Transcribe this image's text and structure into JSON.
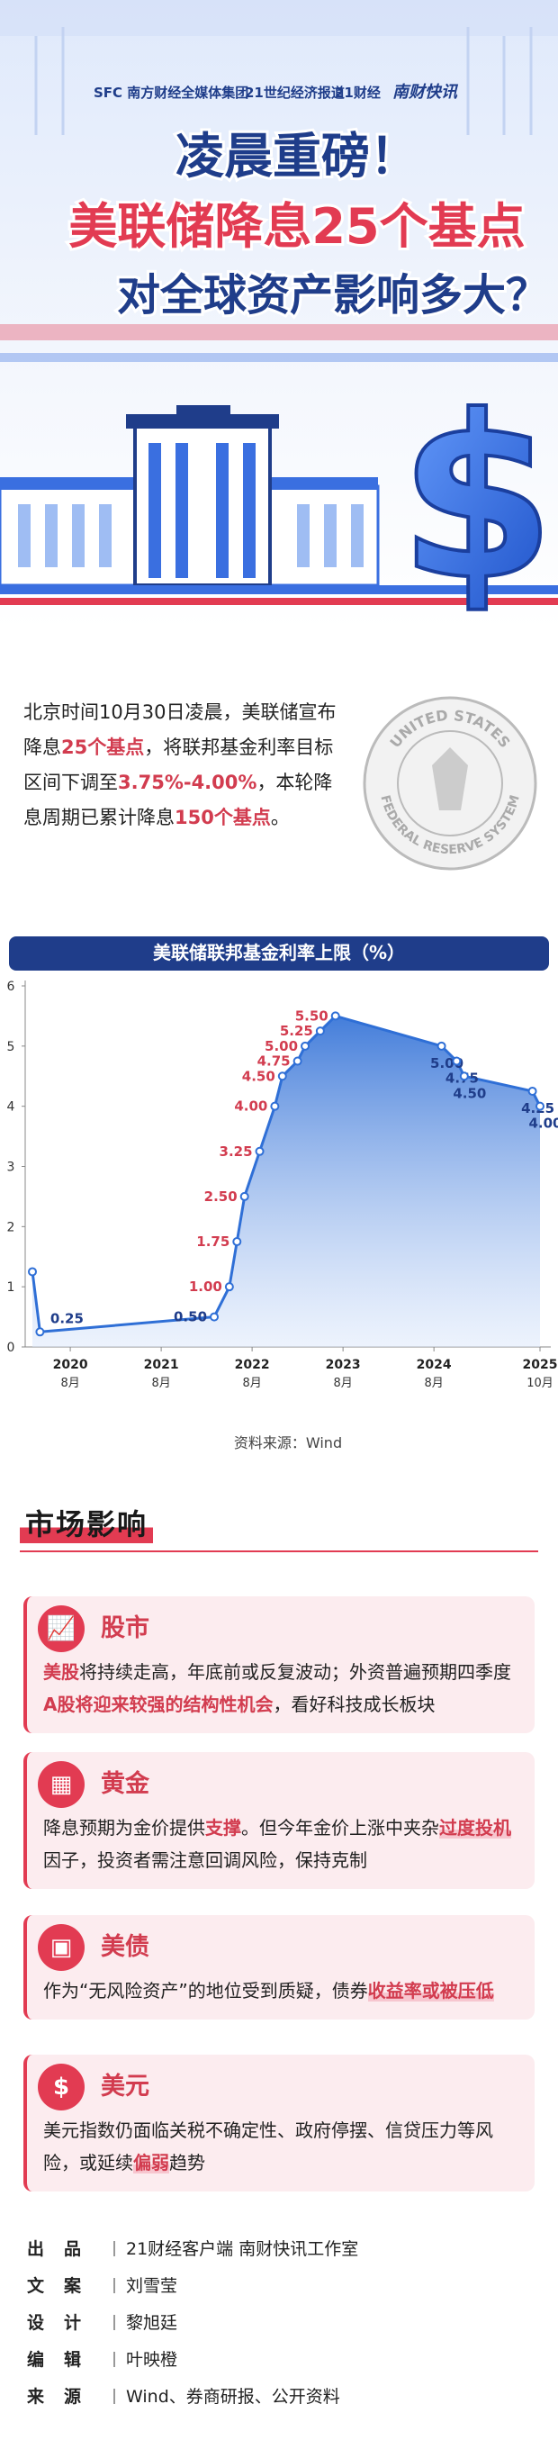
{
  "header": {
    "logos": [
      "SFC 南方财经全媒体集团",
      "21世纪经济报道",
      "21财经",
      "南财快讯"
    ],
    "headline": [
      "凌晨重磅！",
      "美联储降息25个基点",
      "对全球资产影响多大？"
    ]
  },
  "intro": {
    "segments": [
      {
        "text": "北京时间10月30日凌晨，美联储宣布降息",
        "style": "normal"
      },
      {
        "text": "25个基点",
        "style": "red"
      },
      {
        "text": "，将联邦基金利率目标区间下调至",
        "style": "normal"
      },
      {
        "text": "3.75%-4.00%",
        "style": "red"
      },
      {
        "text": "，本轮降息周期已累计降息",
        "style": "normal"
      },
      {
        "text": "150个基点",
        "style": "red"
      },
      {
        "text": "。",
        "style": "normal"
      }
    ],
    "seal_top": "UNITED STATES",
    "seal_bottom": "FEDERAL RESERVE SYSTEM"
  },
  "chart_data": {
    "type": "line",
    "title": "美联储联邦基金利率上限（%）",
    "source": "资料来源：Wind",
    "x": [
      "2020-03",
      "2020-04",
      "2022-03",
      "2022-05",
      "2022-06",
      "2022-07",
      "2022-09",
      "2022-11",
      "2022-12",
      "2023-02",
      "2023-03",
      "2023-05",
      "2023-07",
      "2024-09",
      "2024-11",
      "2024-12",
      "2025-09",
      "2025-10"
    ],
    "series": [
      {
        "name": "联邦基金利率上限",
        "color": "#2f6fd6",
        "values": [
          1.25,
          0.25,
          0.5,
          1.0,
          1.75,
          2.5,
          3.25,
          4.0,
          4.5,
          4.75,
          5.0,
          5.25,
          5.5,
          5.0,
          4.75,
          4.5,
          4.25,
          4.0
        ],
        "value_labels": [
          null,
          "0.25",
          "0.50",
          "1.00",
          "1.75",
          "2.50",
          "3.25",
          "4.00",
          "4.50",
          "4.75",
          "5.00",
          "5.25",
          "5.50",
          "5.00",
          "4.75",
          "4.50",
          "4.25",
          "4.00"
        ]
      }
    ],
    "label_color_up": "#d23c4f",
    "label_color_down": "#1f3d8a",
    "xlim": [
      "2020-03",
      "2025-10"
    ],
    "xticks": [
      {
        "value": "2020-08",
        "label": "2020",
        "sublabel": "8月"
      },
      {
        "value": "2021-08",
        "label": "2021",
        "sublabel": "8月"
      },
      {
        "value": "2022-08",
        "label": "2022",
        "sublabel": "8月"
      },
      {
        "value": "2023-08",
        "label": "2023",
        "sublabel": "8月"
      },
      {
        "value": "2024-08",
        "label": "2024",
        "sublabel": "8月"
      },
      {
        "value": "2025-10",
        "label": "2025",
        "sublabel": "10月"
      }
    ],
    "ylim": [
      0,
      6
    ],
    "yticks": [
      0,
      1,
      2,
      3,
      4,
      5,
      6
    ],
    "grid": false
  },
  "market": {
    "heading": "市场影响",
    "cards": [
      {
        "icon": "chart",
        "title": "股市",
        "segments": [
          {
            "text": "美股",
            "style": "red"
          },
          {
            "text": "将持续走高，年底前或反复波动；外资普遍预期四季度",
            "style": "normal"
          },
          {
            "text": "A股将迎来较强的结构性机会",
            "style": "red"
          },
          {
            "text": "，看好科技成长板块",
            "style": "normal"
          }
        ]
      },
      {
        "icon": "gold",
        "title": "黄金",
        "segments": [
          {
            "text": "降息预期为金价提供",
            "style": "normal"
          },
          {
            "text": "支撑",
            "style": "red"
          },
          {
            "text": "。但今年金价上涨中夹杂",
            "style": "normal"
          },
          {
            "text": "过度投机",
            "style": "mark"
          },
          {
            "text": "因子，投资者需注意回调风险，保持克制",
            "style": "normal"
          }
        ]
      },
      {
        "icon": "bond",
        "title": "美债",
        "segments": [
          {
            "text": "作为“无风险资产”的地位受到质疑，债券",
            "style": "normal"
          },
          {
            "text": "收益率或被压低",
            "style": "mark"
          }
        ]
      },
      {
        "icon": "dollar",
        "title": "美元",
        "segments": [
          {
            "text": "美元指数仍面临关税不确定性、政府停摆、信贷压力等风险，或延续",
            "style": "normal"
          },
          {
            "text": "偏弱",
            "style": "mark"
          },
          {
            "text": "趋势",
            "style": "normal"
          }
        ]
      }
    ]
  },
  "credits": [
    {
      "label": "出品",
      "value": "21财经客户端 南财快讯工作室"
    },
    {
      "label": "文案",
      "value": "刘雪莹"
    },
    {
      "label": "设计",
      "value": "黎旭廷"
    },
    {
      "label": "编辑",
      "value": "叶映橙"
    },
    {
      "label": "来源",
      "value": "Wind、券商研报、公开资料"
    }
  ]
}
